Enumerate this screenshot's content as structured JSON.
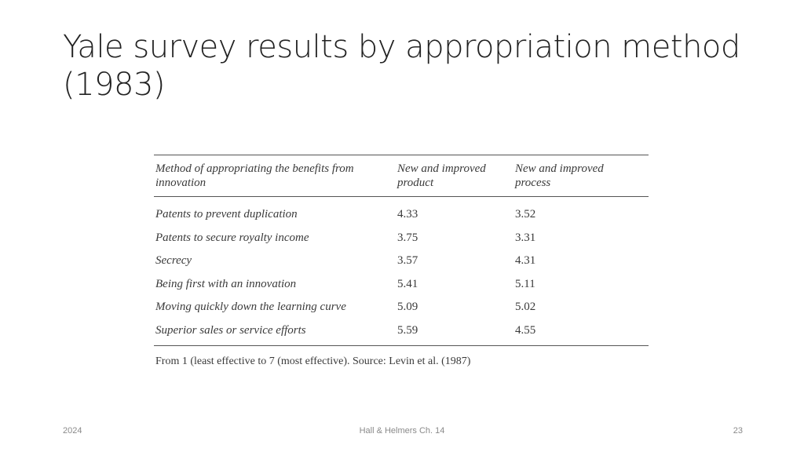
{
  "slide": {
    "title_line1": "Yale survey results by appropriation method",
    "title_line2": "(1983)"
  },
  "table": {
    "headers": {
      "method_line1": "Method of appropriating the benefits from",
      "method_line2": "innovation",
      "product_line1": "New and improved",
      "product_line2": "product",
      "process_line1": "New and improved",
      "process_line2": "process"
    },
    "rows": [
      {
        "method": "Patents to prevent duplication",
        "product": "4.33",
        "process": "3.52"
      },
      {
        "method": "Patents to secure royalty income",
        "product": "3.75",
        "process": "3.31"
      },
      {
        "method": "Secrecy",
        "product": "3.57",
        "process": "4.31"
      },
      {
        "method": "Being first with an innovation",
        "product": "5.41",
        "process": "5.11"
      },
      {
        "method": "Moving quickly down the learning curve",
        "product": "5.09",
        "process": "5.02"
      },
      {
        "method": "Superior sales or service efforts",
        "product": "5.59",
        "process": "4.55"
      }
    ],
    "note": "From 1 (least effective to 7 (most effective). Source: Levin et al. (1987)"
  },
  "footer": {
    "date": "2024",
    "center": "Hall & Helmers Ch. 14",
    "page": "23"
  }
}
